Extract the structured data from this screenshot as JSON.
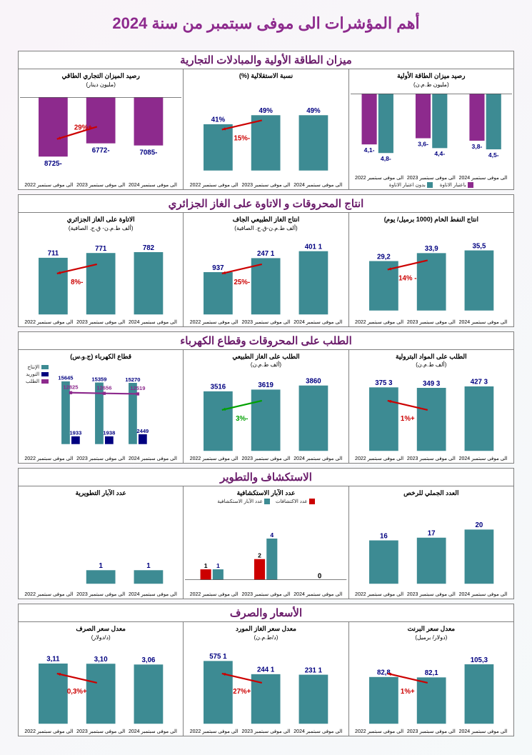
{
  "title": "أهم المؤشرات الى موفى سبتمبر من سنة 2024",
  "periods": [
    "الى موفى سبتمبر 2022",
    "الى موفى سبتمبر 2023",
    "الى موفى سبتمبر 2024"
  ],
  "colors": {
    "teal": "#3d8b93",
    "purple": "#8d2a8d",
    "red": "#cc0000",
    "green": "#00a000",
    "nav": "#000080",
    "arrow": "#cc0000"
  },
  "sections": [
    {
      "title": "ميزان الطاقة الأولية والمبادلات التجارية",
      "charts": [
        {
          "title": "رصيد ميزان الطاقة الأولية",
          "sub": "(مليون ط.م.ن)",
          "type": "grouped_neg",
          "series": [
            {
              "name": "باعتبار الاتاوة",
              "color": "#8d2a8d",
              "values": [
                -3.8,
                -3.6,
                -4.1
              ]
            },
            {
              "name": "بدون اعتبار الاتاوة",
              "color": "#3d8b93",
              "values": [
                -4.5,
                -4.4,
                -4.8
              ]
            }
          ],
          "ymin": -5,
          "ymax": 0,
          "legend_pos": "bottom"
        },
        {
          "title": "نسبة الاستقلالية (%)",
          "sub": "",
          "type": "bar",
          "color": "#3d8b93",
          "values": [
            "49%",
            "49%",
            "41%"
          ],
          "heights": [
            49,
            49,
            41
          ],
          "ymax": 60,
          "pct": "-15%",
          "pct_color": "#cc0000",
          "arrow": "down"
        },
        {
          "title": "رصيد الميزان التجاري الطاقي",
          "sub": "(مليون دينار)",
          "type": "bar_neg",
          "color": "#8d2a8d",
          "values": [
            "-7085",
            "-6772",
            "-8725"
          ],
          "heights": [
            -7085,
            -6772,
            -8725
          ],
          "ymin": -10000,
          "ymax": 0,
          "pct": "+29%",
          "pct_color": "#cc0000",
          "arrow": "down"
        }
      ]
    },
    {
      "title": "انتاج المحروقات و الاتاوة على الغاز الجزائري",
      "charts": [
        {
          "title": "انتاج النفط الخام (1000 برميل/ يوم)",
          "sub": "",
          "type": "bar",
          "color": "#3d8b93",
          "values": [
            "35,5",
            "33,9",
            "29,2"
          ],
          "heights": [
            35.5,
            33.9,
            29.2
          ],
          "ymax": 40,
          "pct": "- 14%",
          "pct_color": "#cc0000",
          "arrow": "down"
        },
        {
          "title": "انتاج الغاز الطبيعي الجاف",
          "sub": "(ألف ط.م.ن-ق.ح. الصافية)",
          "type": "bar",
          "color": "#3d8b93",
          "values": [
            "1 401",
            "1 247",
            "937"
          ],
          "heights": [
            1401,
            1247,
            937
          ],
          "ymax": 1500,
          "pct": "-25%",
          "pct_color": "#cc0000",
          "arrow": "down"
        },
        {
          "title": "الاتاوة على الغاز الجزائري",
          "sub": "(ألف ط.م.ن- ق.ح. الصافية)",
          "type": "bar",
          "color": "#3d8b93",
          "values": [
            "782",
            "771",
            "711"
          ],
          "heights": [
            782,
            771,
            711
          ],
          "ymax": 850,
          "pct": "-8%",
          "pct_color": "#cc0000",
          "arrow": "down"
        }
      ]
    },
    {
      "title": "الطلب على المحروقات وقطاع الكهرباء",
      "charts": [
        {
          "title": "الطلب على المواد البترولية",
          "sub": "(ألف ط.م.ن)",
          "type": "bar",
          "color": "#3d8b93",
          "values": [
            "3 427",
            "3 349",
            "3 375"
          ],
          "heights": [
            3427,
            3349,
            3375
          ],
          "ymax": 3600,
          "pct": "+1%",
          "pct_color": "#cc0000",
          "arrow": "up_red"
        },
        {
          "title": "الطلب على الغاز الطبيعي",
          "sub": "(ألف ط.م.ن)",
          "type": "bar",
          "color": "#3d8b93",
          "values": [
            "3860",
            "3619",
            "3516"
          ],
          "heights": [
            3860,
            3619,
            3516
          ],
          "ymax": 4000,
          "pct": "-3%",
          "pct_color": "#00a000",
          "arrow": "down_green"
        },
        {
          "title": "قطاع الكهرباء (ج.و.س)",
          "sub": "",
          "type": "grouped_elec",
          "series_labels": [
            "الإنتاج",
            "التوريد",
            "الطلب"
          ],
          "series_colors": [
            "#3d8b93",
            "#000080",
            "#8d2a8d"
          ],
          "groups": [
            {
              "period": "الى موفى سبتمبر 2022",
              "prod": 15270,
              "imp": 2449,
              "line": 12519
            },
            {
              "period": "الى موفى سبتمبر 2023",
              "prod": 15359,
              "imp": 1938,
              "line": 12656
            },
            {
              "period": "الى موفى سبتمبر 2024",
              "prod": 15645,
              "imp": 1933,
              "line": 12825
            }
          ],
          "ymax": 17000
        }
      ]
    },
    {
      "title": "الاستكشاف والتطوير",
      "charts": [
        {
          "title": "العدد الجملي للرخص",
          "sub": "",
          "type": "bar",
          "color": "#3d8b93",
          "values": [
            "20",
            "17",
            "16"
          ],
          "heights": [
            20,
            17,
            16
          ],
          "ymax": 25,
          "pct": "",
          "arrow": "none"
        },
        {
          "title": "عدد الآبار الاستكشافية",
          "sub": "",
          "type": "grouped_explore",
          "legend": [
            {
              "name": "عدد الاكتشافات",
              "color": "#cc0000"
            },
            {
              "name": "عدد الآبار الاستكشافية",
              "color": "#3d8b93"
            }
          ],
          "groups": [
            {
              "period": "الى موفى سبتمبر 2022",
              "wells": 0,
              "disc": 0
            },
            {
              "period": "الى موفى سبتمبر 2023",
              "wells": 4,
              "disc": 2
            },
            {
              "period": "الى موفى سبتمبر 2024",
              "wells": 1,
              "disc": 1
            }
          ],
          "ymax": 6
        },
        {
          "title": "عدد الآبار التطويرية",
          "sub": "",
          "type": "bar",
          "color": "#3d8b93",
          "values": [
            "1",
            "1",
            ""
          ],
          "heights": [
            1,
            1,
            0
          ],
          "ymax": 5,
          "pct": "",
          "arrow": "none"
        }
      ]
    },
    {
      "title": "الأسعار والصرف",
      "charts": [
        {
          "title": "معدل سعر البرنت",
          "sub": "(دولار/ برميل)",
          "type": "bar",
          "color": "#3d8b93",
          "values": [
            "105,3",
            "82,1",
            "82,8"
          ],
          "heights": [
            105.3,
            82.1,
            82.8
          ],
          "ymax": 120,
          "pct": "+1%",
          "pct_color": "#cc0000",
          "arrow": "up_red"
        },
        {
          "title": "معدل سعر الغاز المورد",
          "sub": "(د/ط.م.ن)",
          "type": "bar",
          "color": "#3d8b93",
          "values": [
            "1 231",
            "1 244",
            "1 575"
          ],
          "heights": [
            1231,
            1244,
            1575
          ],
          "ymax": 1700,
          "pct": "+27%",
          "pct_color": "#cc0000",
          "arrow": "up_red"
        },
        {
          "title": "معدل سعر الصرف",
          "sub": "(د/دولار)",
          "type": "bar",
          "color": "#3d8b93",
          "values": [
            "3,06",
            "3,10",
            "3,11"
          ],
          "heights": [
            3.06,
            3.1,
            3.11
          ],
          "ymax": 3.5,
          "pct": "+0,3%",
          "pct_color": "#cc0000",
          "arrow": "up_red"
        }
      ]
    }
  ]
}
